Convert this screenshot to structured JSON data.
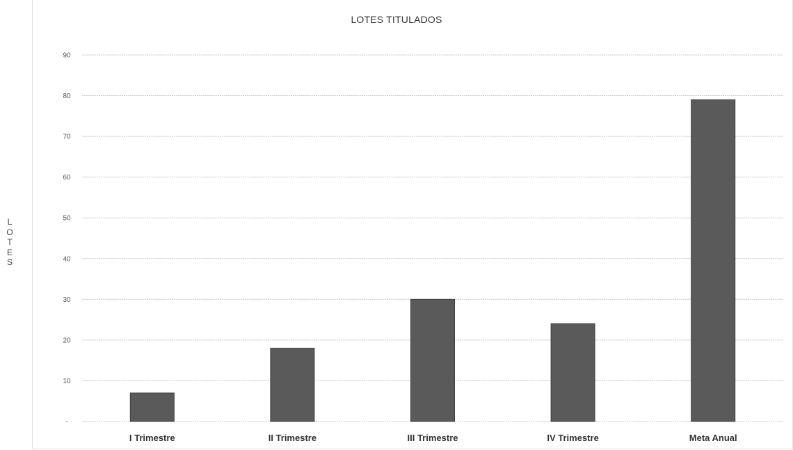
{
  "chart_data": {
    "type": "bar",
    "title": "LOTES TITULADOS",
    "ylabel": "L\nO\nT\nE\nS",
    "xlabel": "",
    "categories": [
      "I Trimestre",
      "II Trimestre",
      "III Trimestre",
      "IV Trimestre",
      "Meta Anual"
    ],
    "values": [
      7,
      18,
      30,
      24,
      79
    ],
    "ylim": [
      0,
      90
    ],
    "yticks": [
      0,
      10,
      20,
      30,
      40,
      50,
      60,
      70,
      80,
      90
    ],
    "ytick_labels": [
      "-",
      "10",
      "20",
      "30",
      "40",
      "50",
      "60",
      "70",
      "80",
      "90"
    ],
    "grid": true,
    "legend": "none",
    "colors": {
      "bar": "#5a5a5a",
      "bar_edge": "#3e3e3e",
      "grid": "#c9c9c9"
    }
  }
}
